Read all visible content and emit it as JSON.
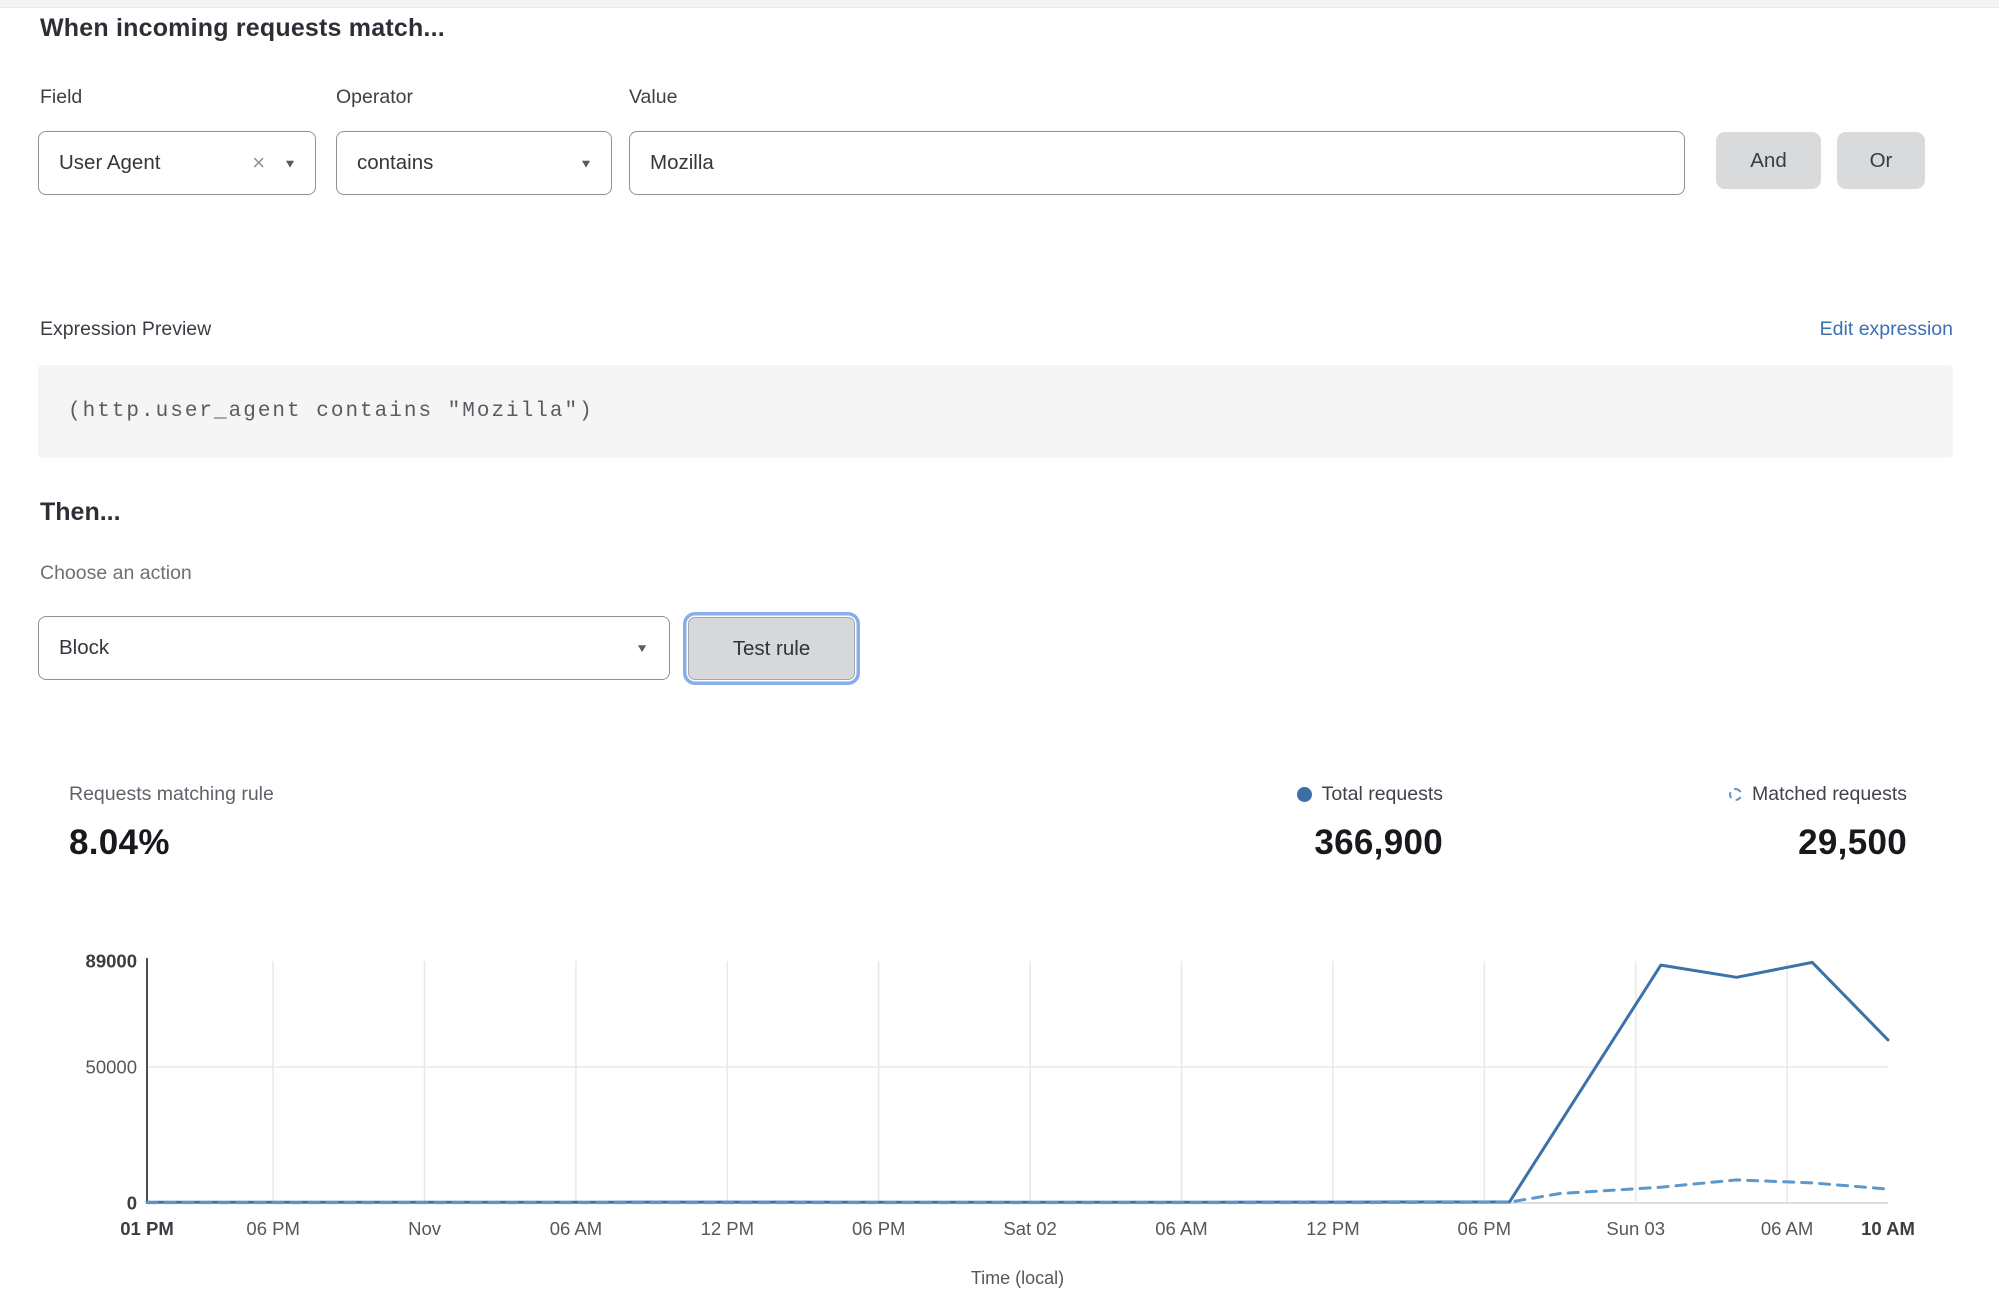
{
  "header": {
    "title": "When incoming requests match..."
  },
  "icons": {
    "clear_glyph": "×",
    "caret_glyph": "▼"
  },
  "rule_builder": {
    "field_label": "Field",
    "operator_label": "Operator",
    "value_label": "Value",
    "field_selected": "User Agent",
    "operator_selected": "contains",
    "value_text": "Mozilla",
    "and_label": "And",
    "or_label": "Or"
  },
  "expression": {
    "label": "Expression Preview",
    "edit_link": "Edit expression",
    "code": "(http.user_agent contains \"Mozilla\")"
  },
  "action": {
    "then_label": "Then...",
    "choose_label": "Choose an action",
    "selected": "Block",
    "test_button": "Test rule"
  },
  "stats": {
    "matching_label": "Requests matching rule",
    "matching_value": "8.04%",
    "total_label": "Total requests",
    "total_value": "366,900",
    "matched_label": "Matched requests",
    "matched_value": "29,500"
  },
  "colors": {
    "total_line": "#3b72a8",
    "matched_line": "#5d97cc",
    "grid": "#e8e8e8",
    "axis_dark": "#4b4e53",
    "axis_light": "#d4d4d4",
    "tick_regular": "#54585d",
    "tick_bold": "#3a3d42",
    "link_blue": "#3b70b4"
  },
  "chart_data": {
    "type": "line",
    "title": "",
    "xlabel": "Time (local)",
    "ylabel": "",
    "x_unit": "hours_from_start",
    "xlim": [
      0,
      69
    ],
    "ylim": [
      0,
      89000
    ],
    "grid": "on",
    "legend_position": "top-right",
    "yticks": [
      {
        "value": 0,
        "label": "0",
        "bold": true
      },
      {
        "value": 50000,
        "label": "50000",
        "bold": false
      },
      {
        "value": 89000,
        "label": "89000",
        "bold": true
      }
    ],
    "xticks": [
      {
        "h": 0,
        "label": "01 PM",
        "bold": true
      },
      {
        "h": 5,
        "label": "06 PM",
        "bold": false
      },
      {
        "h": 11,
        "label": "Nov",
        "bold": false
      },
      {
        "h": 17,
        "label": "06 AM",
        "bold": false
      },
      {
        "h": 23,
        "label": "12 PM",
        "bold": false
      },
      {
        "h": 29,
        "label": "06 PM",
        "bold": false
      },
      {
        "h": 35,
        "label": "Sat 02",
        "bold": false
      },
      {
        "h": 41,
        "label": "06 AM",
        "bold": false
      },
      {
        "h": 47,
        "label": "12 PM",
        "bold": false
      },
      {
        "h": 53,
        "label": "06 PM",
        "bold": false
      },
      {
        "h": 59,
        "label": "Sun 03",
        "bold": false
      },
      {
        "h": 65,
        "label": "06 AM",
        "bold": false
      },
      {
        "h": 69,
        "label": "10 AM",
        "bold": true
      }
    ],
    "series": [
      {
        "name": "Total requests",
        "style": "solid",
        "color": "#3b72a8",
        "points": [
          [
            0,
            300
          ],
          [
            6,
            300
          ],
          [
            12,
            280
          ],
          [
            18,
            300
          ],
          [
            24,
            320
          ],
          [
            30,
            300
          ],
          [
            36,
            280
          ],
          [
            42,
            300
          ],
          [
            48,
            320
          ],
          [
            54,
            400
          ],
          [
            60,
            87500
          ],
          [
            63,
            83000
          ],
          [
            66,
            88500
          ],
          [
            69,
            60000
          ]
        ]
      },
      {
        "name": "Matched requests",
        "style": "dashed",
        "color": "#5d97cc",
        "points": [
          [
            0,
            150
          ],
          [
            6,
            150
          ],
          [
            12,
            150
          ],
          [
            18,
            150
          ],
          [
            24,
            150
          ],
          [
            30,
            150
          ],
          [
            36,
            150
          ],
          [
            42,
            150
          ],
          [
            48,
            150
          ],
          [
            54,
            300
          ],
          [
            56,
            3500
          ],
          [
            60,
            5800
          ],
          [
            63,
            8500
          ],
          [
            66,
            7400
          ],
          [
            69,
            5100
          ]
        ]
      }
    ]
  }
}
